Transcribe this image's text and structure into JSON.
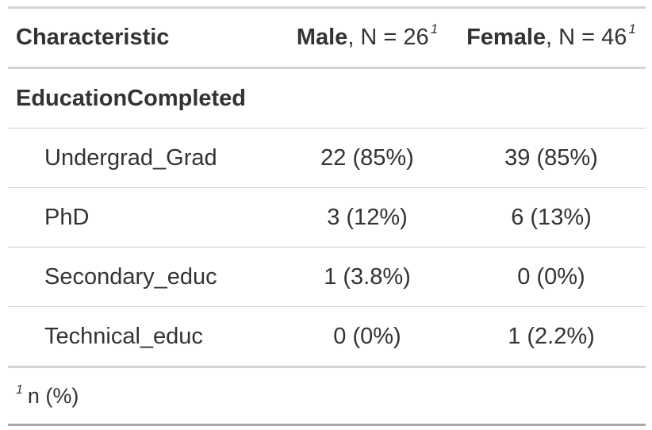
{
  "header": {
    "characteristic": "Characteristic",
    "male_label": "Male",
    "male_n": ", N = 26",
    "female_label": "Female",
    "female_n": ", N = 46",
    "footnote_marker": "1"
  },
  "group": {
    "label": "EducationCompleted"
  },
  "rows": [
    {
      "label": "Undergrad_Grad",
      "male": "22 (85%)",
      "female": "39 (85%)"
    },
    {
      "label": "PhD",
      "male": "3 (12%)",
      "female": "6 (13%)"
    },
    {
      "label": "Secondary_educ",
      "male": "1 (3.8%)",
      "female": "0 (0%)"
    },
    {
      "label": "Technical_educ",
      "male": "0 (0%)",
      "female": "1 (2.2%)"
    }
  ],
  "footnote": {
    "marker": "1",
    "text": "n (%)"
  }
}
